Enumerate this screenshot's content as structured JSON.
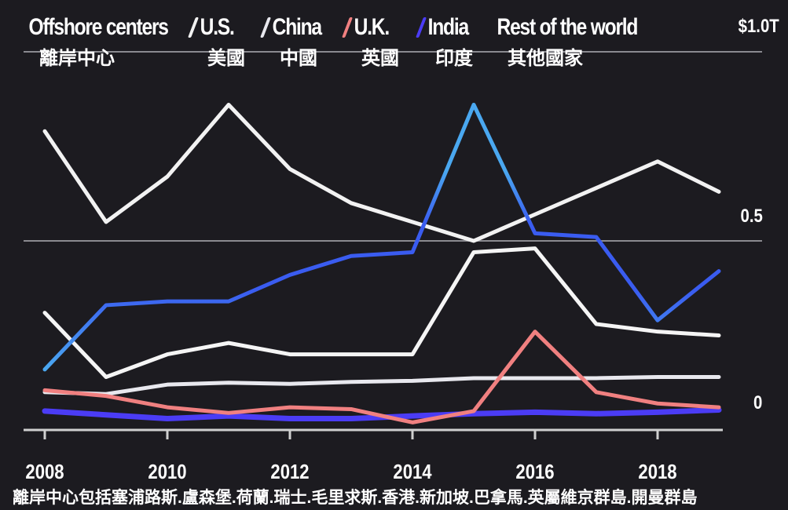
{
  "chart_data": {
    "type": "line",
    "x": [
      2008,
      2009,
      2010,
      2011,
      2012,
      2013,
      2014,
      2015,
      2016,
      2017,
      2018,
      2019
    ],
    "xticks": [
      "2008",
      "2010",
      "2012",
      "2014",
      "2016",
      "2018"
    ],
    "yticks": [
      "0",
      "0.5",
      "$1.0T"
    ],
    "ylim": [
      0,
      1.0
    ],
    "grid": true,
    "legend_placement": "top",
    "series": [
      {
        "name": "Offshore centers",
        "name_zh": "離岸中心",
        "color": "#4aa8f0",
        "color_end": "#3a5cf0",
        "values": [
          0.16,
          0.33,
          0.34,
          0.34,
          0.41,
          0.46,
          0.47,
          0.86,
          0.52,
          0.51,
          0.29,
          0.42
        ]
      },
      {
        "name": "U.S.",
        "name_zh": "美國",
        "color": "#f2f2f2",
        "values": [
          0.79,
          0.55,
          0.67,
          0.86,
          0.69,
          0.6,
          0.55,
          0.5,
          0.57,
          0.64,
          0.71,
          0.63
        ]
      },
      {
        "name": "China",
        "name_zh": "中國",
        "color": "#e8e8ee",
        "values": [
          0.1,
          0.095,
          0.12,
          0.125,
          0.122,
          0.127,
          0.13,
          0.137,
          0.137,
          0.137,
          0.14,
          0.14
        ]
      },
      {
        "name": "U.K.",
        "name_zh": "英國",
        "color": "#f08080",
        "values": [
          0.105,
          0.09,
          0.06,
          0.045,
          0.06,
          0.055,
          0.02,
          0.05,
          0.26,
          0.1,
          0.07,
          0.06
        ]
      },
      {
        "name": "India",
        "name_zh": "印度",
        "color": "#4b3cf5",
        "values": [
          0.05,
          0.04,
          0.03,
          0.037,
          0.03,
          0.03,
          0.037,
          0.043,
          0.047,
          0.043,
          0.047,
          0.053
        ]
      },
      {
        "name": "Rest of the world",
        "name_zh": "其他國家",
        "color": "#f5f5f5",
        "values": [
          0.31,
          0.14,
          0.2,
          0.23,
          0.2,
          0.2,
          0.2,
          0.47,
          0.48,
          0.28,
          0.26,
          0.25
        ]
      }
    ],
    "note": "離岸中心包括塞浦路斯.盧森堡.荷蘭.瑞士.毛里求斯.香港.新加坡.巴拿馬.英屬維京群島.開曼群島"
  }
}
